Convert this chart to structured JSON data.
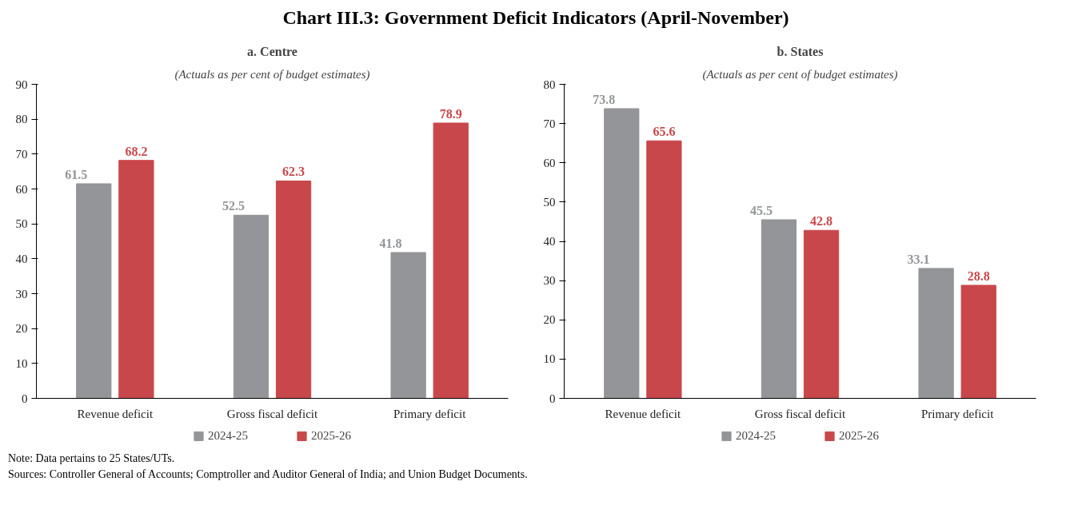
{
  "chart_data": [
    {
      "type": "bar",
      "title": "a. Centre",
      "subtitle": "(Actuals as per cent of budget estimates)",
      "categories": [
        "Revenue deficit",
        "Gross fiscal deficit",
        "Primary deficit"
      ],
      "series": [
        {
          "name": "2024-25",
          "color": "#939598",
          "values": [
            61.5,
            52.5,
            41.8
          ]
        },
        {
          "name": "2025-26",
          "color": "#c8474a",
          "values": [
            68.2,
            62.3,
            78.9
          ]
        }
      ],
      "ylim": [
        0,
        90
      ],
      "yticks": [
        0,
        10,
        20,
        30,
        40,
        50,
        60,
        70,
        80,
        90
      ],
      "grid": false,
      "legend": "bottom",
      "data_labels": true,
      "annotations": [
        "Chart III.3: Government Deficit Indicators (April-November)",
        "Note: Data pertains to 25 States/UTs.",
        "Sources: Controller General of Accounts; Comptroller and Auditor General of India; and Union Budget Documents."
      ]
    },
    {
      "type": "bar",
      "title": "b. States",
      "subtitle": "(Actuals as per cent of budget estimates)",
      "categories": [
        "Revenue deficit",
        "Gross fiscal deficit",
        "Primary deficit"
      ],
      "series": [
        {
          "name": "2024-25",
          "color": "#939598",
          "values": [
            73.8,
            45.5,
            33.1
          ]
        },
        {
          "name": "2025-26",
          "color": "#c8474a",
          "values": [
            65.6,
            42.8,
            28.8
          ]
        }
      ],
      "ylim": [
        0,
        80
      ],
      "yticks": [
        0,
        10,
        20,
        30,
        40,
        50,
        60,
        70,
        80
      ],
      "grid": false,
      "legend": "bottom",
      "data_labels": true
    }
  ]
}
